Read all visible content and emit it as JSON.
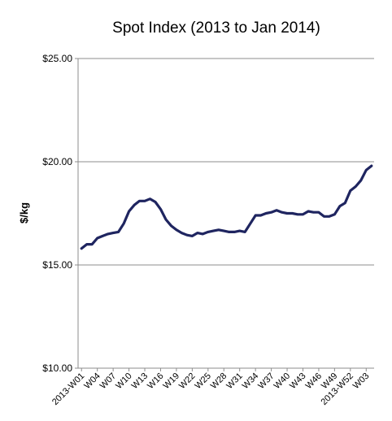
{
  "chart_data": {
    "type": "line",
    "title": "Spot Index (2013 to Jan 2014)",
    "ylabel": "$/kg",
    "xlabel": "",
    "ylim": [
      10,
      25
    ],
    "yticks": [
      10,
      15,
      20,
      25
    ],
    "ytick_labels": [
      "$10.00",
      "$15.00",
      "$20.00",
      "$25.00"
    ],
    "grid": true,
    "legend": "none",
    "line_color": "#1f2560",
    "categories": [
      "2013-W01",
      "W02",
      "W03",
      "W04",
      "W05",
      "W06",
      "W07",
      "W08",
      "W09",
      "W10",
      "W11",
      "W12",
      "W13",
      "W14",
      "W15",
      "W16",
      "W17",
      "W18",
      "W19",
      "W20",
      "W21",
      "W22",
      "W23",
      "W24",
      "W25",
      "W26",
      "W27",
      "W28",
      "W29",
      "W30",
      "W31",
      "W32",
      "W33",
      "W34",
      "W35",
      "W36",
      "W37",
      "W38",
      "W39",
      "W40",
      "W41",
      "W42",
      "W43",
      "W44",
      "W45",
      "W46",
      "W47",
      "W48",
      "W49",
      "W50",
      "W51",
      "2013-W52",
      "W01",
      "W02",
      "W03",
      "W04"
    ],
    "xtick_labels": [
      "2013-W01",
      "W04",
      "W07",
      "W10",
      "W13",
      "W16",
      "W19",
      "W22",
      "W25",
      "W28",
      "W31",
      "W34",
      "W37",
      "W40",
      "W43",
      "W46",
      "W49",
      "2013-W52",
      "W03"
    ],
    "xtick_indices": [
      0,
      3,
      6,
      9,
      12,
      15,
      18,
      21,
      24,
      27,
      30,
      33,
      36,
      39,
      42,
      45,
      48,
      51,
      54
    ],
    "series": [
      {
        "values": [
          15.8,
          16.0,
          16.0,
          16.3,
          16.4,
          16.5,
          16.55,
          16.6,
          17.0,
          17.6,
          17.9,
          18.1,
          18.1,
          18.2,
          18.05,
          17.7,
          17.2,
          16.9,
          16.7,
          16.55,
          16.45,
          16.4,
          16.55,
          16.5,
          16.6,
          16.65,
          16.7,
          16.65,
          16.6,
          16.6,
          16.65,
          16.6,
          17.0,
          17.4,
          17.4,
          17.5,
          17.55,
          17.65,
          17.55,
          17.5,
          17.5,
          17.45,
          17.45,
          17.6,
          17.55,
          17.55,
          17.35,
          17.35,
          17.45,
          17.85,
          18.0,
          18.6,
          18.8,
          19.1,
          19.6,
          19.8
        ]
      }
    ]
  }
}
